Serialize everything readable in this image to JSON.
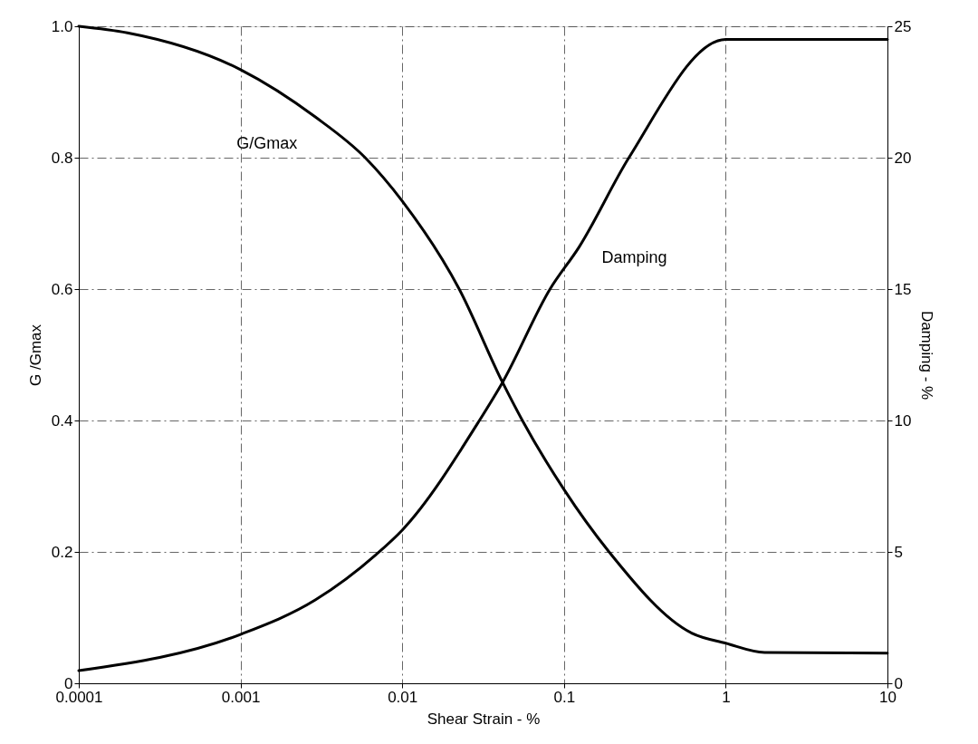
{
  "chart_data": {
    "type": "line",
    "xlabel": "Shear Strain - %",
    "ylabel": "G /Gmax",
    "y2label": "Damping - %",
    "log": "x",
    "grid": true,
    "marker": "none",
    "line_style": "solid",
    "xlim": [
      0.0001,
      10
    ],
    "xticks": [
      0.0001,
      0.001,
      0.01,
      0.1,
      1,
      10
    ],
    "ylim": [
      0,
      1
    ],
    "yticks": [
      0,
      0.2,
      0.4,
      0.6,
      0.8,
      {
        "value": 1,
        "label": "1.0"
      }
    ],
    "y2lim": [
      0,
      25
    ],
    "y2ticks": [
      0,
      5,
      10,
      15,
      20,
      25
    ],
    "series": [
      {
        "color": "#000000",
        "x": [
          0.0001,
          0.0002,
          0.001,
          0.0029,
          0.0059,
          0.01,
          0.0225,
          0.0417,
          0.0553,
          0.1,
          0.19,
          0.62,
          1,
          1.74,
          10
        ],
        "values": [
          1.0,
          0.99,
          0.934,
          0.862,
          0.8,
          0.734,
          0.6,
          0.458,
          0.4,
          0.295,
          0.2,
          0.076,
          0.061,
          0.047,
          0.046
        ]
      },
      {
        "color": "#000000",
        "axis": "y2",
        "x": [
          0.0001,
          0.001,
          0.0029,
          0.0069,
          0.01,
          0.03,
          0.0417,
          0.082,
          0.124,
          0.252,
          1,
          10
        ],
        "values": [
          0.48,
          1.86,
          3.17,
          4.9,
          5.83,
          10,
          11.45,
          15,
          16.6,
          20,
          24.5,
          24.5
        ]
      }
    ],
    "annotations": [
      {
        "text": "G/Gmax",
        "x": 0.0029,
        "y": 0.862
      },
      {
        "text": "Damping",
        "x": 0.124,
        "y": 0.664
      }
    ]
  }
}
